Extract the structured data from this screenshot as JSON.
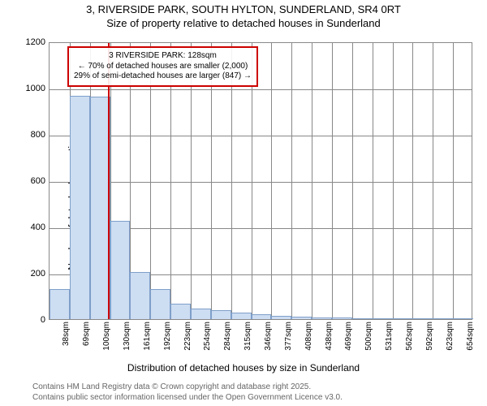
{
  "title_line1": "3, RIVERSIDE PARK, SOUTH HYLTON, SUNDERLAND, SR4 0RT",
  "title_line2": "Size of property relative to detached houses in Sunderland",
  "ylabel": "Number of detached properties",
  "xlabel": "Distribution of detached houses by size in Sunderland",
  "credits_line1": "Contains HM Land Registry data © Crown copyright and database right 2025.",
  "credits_line2": "Contains public sector information licensed under the Open Government Licence v3.0.",
  "chart": {
    "type": "histogram",
    "ylim": [
      0,
      1200
    ],
    "ytick_step": 200,
    "background_color": "#ffffff",
    "grid_color": "#888888",
    "bar_fill": "#cdddf2",
    "bar_stroke": "#7f9fc9",
    "refline_color": "#cc0000",
    "refline_x_index": 2.9,
    "x_categories": [
      "38sqm",
      "69sqm",
      "100sqm",
      "130sqm",
      "161sqm",
      "192sqm",
      "223sqm",
      "254sqm",
      "284sqm",
      "315sqm",
      "346sqm",
      "377sqm",
      "408sqm",
      "438sqm",
      "469sqm",
      "500sqm",
      "531sqm",
      "562sqm",
      "592sqm",
      "623sqm",
      "654sqm"
    ],
    "values": [
      130,
      965,
      960,
      425,
      205,
      130,
      65,
      45,
      40,
      28,
      22,
      14,
      11,
      8,
      6,
      5,
      5,
      4,
      4,
      3,
      2
    ]
  },
  "callout": {
    "line1": "3 RIVERSIDE PARK: 128sqm",
    "line2": "← 70% of detached houses are smaller (2,000)",
    "line3": "29% of semi-detached houses are larger (847) →",
    "border_color": "#cc0000"
  }
}
